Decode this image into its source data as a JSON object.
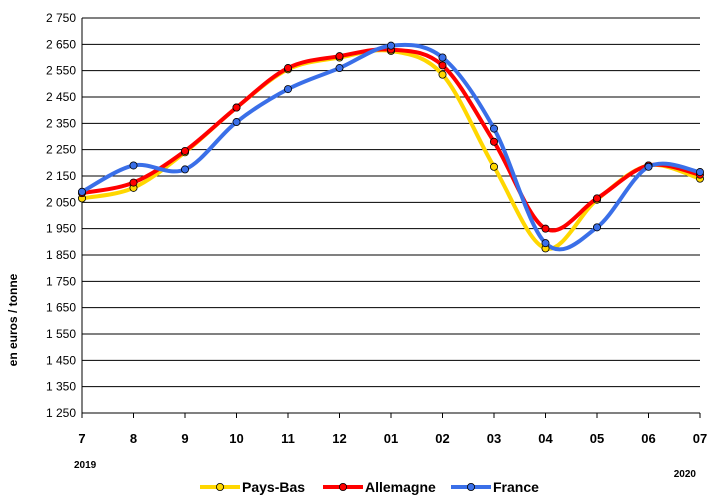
{
  "chart_data": {
    "type": "line",
    "ylabel": "en euros / tonne",
    "categories": [
      "7",
      "8",
      "9",
      "10",
      "11",
      "12",
      "01",
      "02",
      "03",
      "04",
      "05",
      "06",
      "07"
    ],
    "year_labels": [
      {
        "text": "2019",
        "category": "7"
      },
      {
        "text": "2020",
        "category": "07"
      }
    ],
    "ylim": [
      1250,
      2750
    ],
    "yticks": [
      1250,
      1350,
      1450,
      1550,
      1650,
      1750,
      1850,
      1950,
      2050,
      2150,
      2250,
      2350,
      2450,
      2550,
      2650,
      2750
    ],
    "ytick_labels": [
      "1 250",
      "1 350",
      "1 450",
      "1 550",
      "1 650",
      "1 750",
      "1 850",
      "1 950",
      "2 050",
      "2 150",
      "2 250",
      "2 350",
      "2 450",
      "2 550",
      "2 650",
      "2 750"
    ],
    "grid": true,
    "legend": "bottom",
    "series": [
      {
        "name": "Pays-Bas",
        "color": "#FFD700",
        "values": [
          2065,
          2105,
          2240,
          2410,
          2555,
          2600,
          2625,
          2535,
          2185,
          1875,
          2060,
          2190,
          2140
        ]
      },
      {
        "name": "Allemagne",
        "color": "#FF0000",
        "values": [
          2085,
          2125,
          2245,
          2410,
          2560,
          2605,
          2630,
          2570,
          2280,
          1950,
          2065,
          2190,
          2155
        ]
      },
      {
        "name": "France",
        "color": "#3A6FE8",
        "values": [
          2090,
          2190,
          2175,
          2355,
          2480,
          2560,
          2645,
          2600,
          2330,
          1895,
          1955,
          2185,
          2165
        ]
      }
    ]
  }
}
